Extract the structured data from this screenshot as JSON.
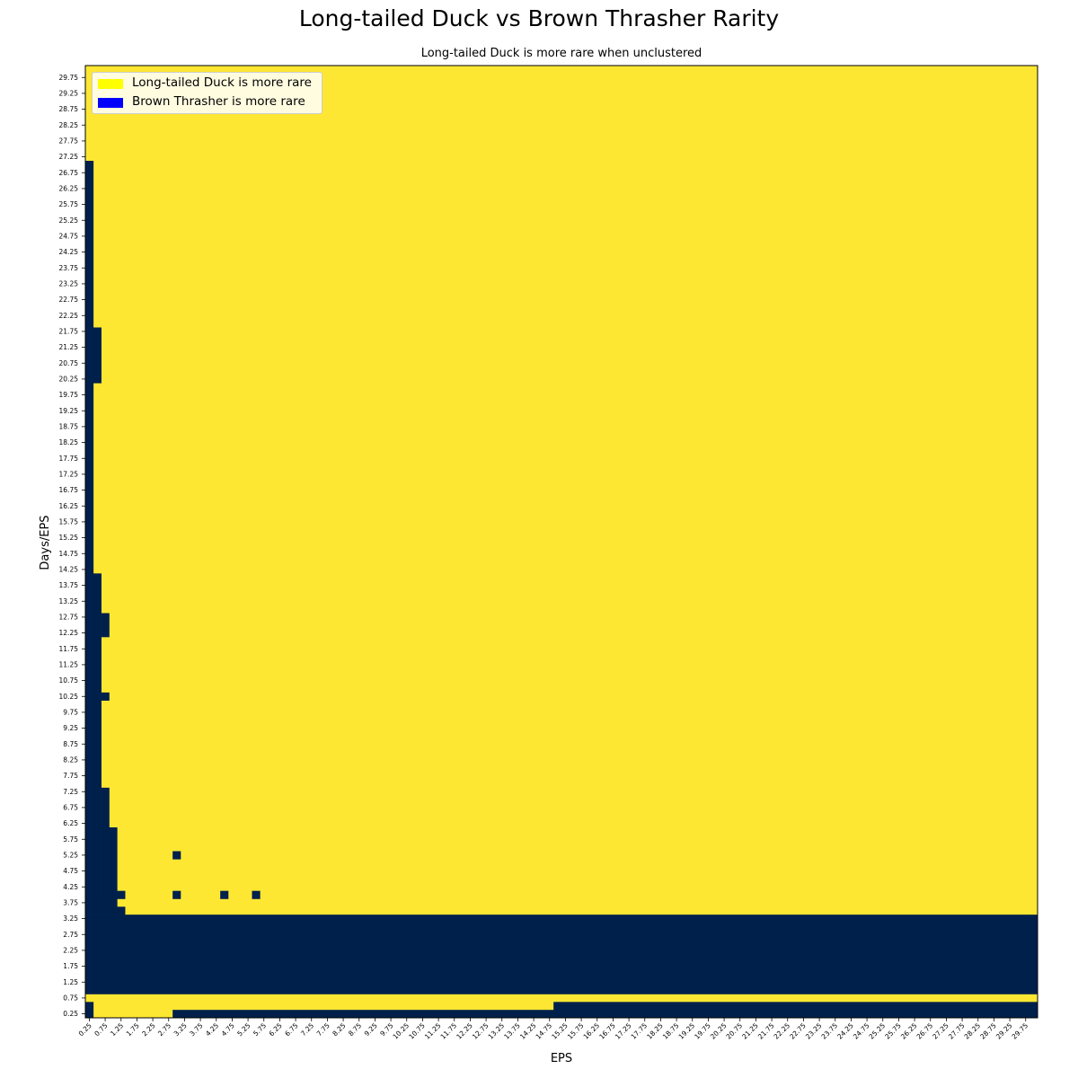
{
  "colors": {
    "yellow": "#fde733",
    "navy": "#00204c",
    "legend_yellow": "#ffff00",
    "legend_blue": "#0000ff"
  },
  "chart_data": {
    "type": "heatmap",
    "title": "Long-tailed Duck vs Brown Thrasher Rarity",
    "subtitle": "Long-tailed Duck is more rare when unclustered",
    "xlabel": "EPS",
    "ylabel": "Days/EPS",
    "x_range": [
      0.25,
      30.0
    ],
    "y_range": [
      0.25,
      30.0
    ],
    "step": 0.25,
    "x_tick_labels": [
      "0.25",
      "0.75",
      "1.25",
      "1.75",
      "2.25",
      "2.75",
      "3.25",
      "3.75",
      "4.25",
      "4.75",
      "5.25",
      "5.75",
      "6.25",
      "6.75",
      "7.25",
      "7.75",
      "8.25",
      "8.75",
      "9.25",
      "9.75",
      "10.25",
      "10.75",
      "11.25",
      "11.75",
      "12.25",
      "12.75",
      "13.25",
      "13.75",
      "14.25",
      "14.75",
      "15.25",
      "15.75",
      "16.25",
      "16.75",
      "17.25",
      "17.75",
      "18.25",
      "18.75",
      "19.25",
      "19.75",
      "20.25",
      "20.75",
      "21.25",
      "21.75",
      "22.25",
      "22.75",
      "23.25",
      "23.75",
      "24.25",
      "24.75",
      "25.25",
      "25.75",
      "26.25",
      "26.75",
      "27.25",
      "27.75",
      "28.25",
      "28.75",
      "29.25",
      "29.75"
    ],
    "y_tick_labels": [
      "0.25",
      "0.75",
      "1.25",
      "1.75",
      "2.25",
      "2.75",
      "3.25",
      "3.75",
      "4.25",
      "4.75",
      "5.25",
      "5.75",
      "6.25",
      "6.75",
      "7.25",
      "7.75",
      "8.25",
      "8.75",
      "9.25",
      "9.75",
      "10.25",
      "10.75",
      "11.25",
      "11.75",
      "12.25",
      "12.75",
      "13.25",
      "13.75",
      "14.25",
      "14.75",
      "15.25",
      "15.75",
      "16.25",
      "16.75",
      "17.25",
      "17.75",
      "18.25",
      "18.75",
      "19.25",
      "19.75",
      "20.25",
      "20.75",
      "21.25",
      "21.75",
      "22.25",
      "22.75",
      "23.25",
      "23.75",
      "24.25",
      "24.75",
      "25.25",
      "25.75",
      "26.25",
      "26.75",
      "27.25",
      "27.75",
      "28.25",
      "28.75",
      "29.25",
      "29.75"
    ],
    "default_value": "Long-tailed Duck is more rare",
    "brown_thrasher_regions": [
      {
        "eps": [
          0.25,
          0.25
        ],
        "days_eps": [
          4.0,
          27.0
        ]
      },
      {
        "eps": [
          0.5,
          0.5
        ],
        "days_eps": [
          20.25,
          21.75
        ]
      },
      {
        "eps": [
          0.5,
          0.5
        ],
        "days_eps": [
          4.0,
          14.0
        ]
      },
      {
        "eps": [
          0.75,
          0.75
        ],
        "days_eps": [
          12.25,
          12.75
        ]
      },
      {
        "eps": [
          0.75,
          0.75
        ],
        "days_eps": [
          10.25,
          10.25
        ]
      },
      {
        "eps": [
          0.75,
          0.75
        ],
        "days_eps": [
          4.0,
          7.25
        ]
      },
      {
        "eps": [
          1.0,
          1.0
        ],
        "days_eps": [
          4.0,
          6.0
        ]
      },
      {
        "eps": [
          1.25,
          1.25
        ],
        "days_eps": [
          4.0,
          4.0
        ]
      },
      {
        "eps": [
          1.25,
          1.25
        ],
        "days_eps": [
          3.5,
          3.5
        ]
      },
      {
        "eps": [
          1.0,
          1.0
        ],
        "days_eps": [
          3.5,
          3.75
        ]
      },
      {
        "eps": [
          0.25,
          0.75
        ],
        "days_eps": [
          3.5,
          3.75
        ]
      },
      {
        "eps": [
          0.25,
          30.0
        ],
        "days_eps": [
          1.0,
          3.25
        ]
      },
      {
        "eps": [
          0.25,
          0.25
        ],
        "days_eps": [
          0.25,
          0.5
        ]
      },
      {
        "eps": [
          3.0,
          14.75
        ],
        "days_eps": [
          0.25,
          0.25
        ]
      },
      {
        "eps": [
          15.0,
          30.0
        ],
        "days_eps": [
          0.25,
          0.5
        ]
      },
      {
        "eps": [
          3.0,
          3.0
        ],
        "days_eps": [
          5.25,
          5.25
        ]
      },
      {
        "eps": [
          3.0,
          3.0
        ],
        "days_eps": [
          4.0,
          4.0
        ]
      },
      {
        "eps": [
          4.5,
          4.5
        ],
        "days_eps": [
          4.0,
          4.0
        ]
      },
      {
        "eps": [
          5.5,
          5.5
        ],
        "days_eps": [
          4.0,
          4.0
        ]
      }
    ],
    "legend": {
      "position": "upper-left",
      "entries": [
        "Long-tailed Duck is more rare",
        "Brown Thrasher is more rare"
      ]
    }
  }
}
